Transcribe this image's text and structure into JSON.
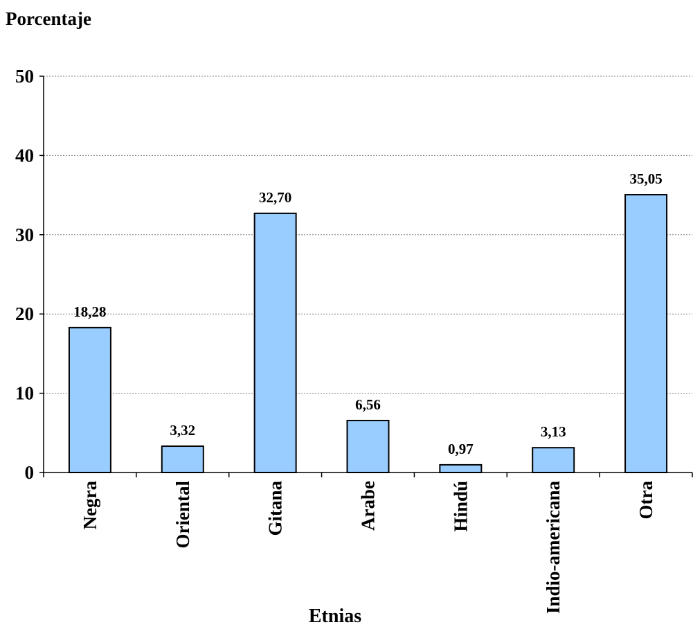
{
  "chart_data": {
    "type": "bar",
    "title": "",
    "ylabel": "Porcentaje",
    "xlabel": "Etnias",
    "categories": [
      "Negra",
      "Oriental",
      "Gitana",
      "Arabe",
      "Hindú",
      "Indio-americana",
      "Otra"
    ],
    "values": [
      18.28,
      3.32,
      32.7,
      6.56,
      0.97,
      3.13,
      35.05
    ],
    "data_labels": [
      "18,28",
      "3,32",
      "32,70",
      "6,56",
      "0,97",
      "3,13",
      "35,05"
    ],
    "ylim": [
      0,
      50
    ],
    "yticks": [
      0,
      10,
      20,
      30,
      40,
      50
    ],
    "grid": true,
    "legend": "none",
    "bar_color": "#99ccff",
    "bar_edge_color": "#000000",
    "grid_color": "#808080"
  }
}
